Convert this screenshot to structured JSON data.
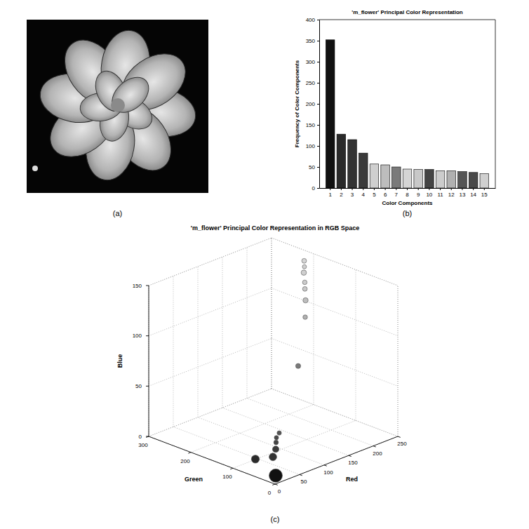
{
  "chart_data": [
    {
      "type": "image",
      "label": "(a)"
    },
    {
      "type": "bar",
      "label": "(b)",
      "title": "'m_flower' Principal Color Representation",
      "xlabel": "Color Components",
      "ylabel": "Frequency of Color Components",
      "categories": [
        1,
        2,
        3,
        4,
        5,
        6,
        7,
        8,
        9,
        10,
        11,
        12,
        13,
        14,
        15
      ],
      "values": [
        352,
        128,
        115,
        83,
        57,
        55,
        50,
        45,
        44,
        44,
        41,
        41,
        39,
        37,
        34
      ],
      "colors": [
        "#111111",
        "#2a2a2a",
        "#333333",
        "#3a3a3a",
        "#cfcfcf",
        "#bdbdbd",
        "#7a7a7a",
        "#d5d5d5",
        "#c8c8c8",
        "#444444",
        "#cccccc",
        "#b0b0b0",
        "#555555",
        "#4a4a4a",
        "#d0d0d0"
      ],
      "ylim": [
        0,
        400
      ],
      "yticks": [
        0,
        50,
        100,
        150,
        200,
        250,
        300,
        350,
        400
      ]
    },
    {
      "type": "scatter3d",
      "label": "(c)",
      "title": "'m_flower' Principal Color Representation in RGB Space",
      "xlabel": "Red",
      "ylabel": "Green",
      "zlabel": "Blue",
      "x": [
        10,
        20,
        30,
        40,
        230,
        225,
        150,
        235,
        228,
        45,
        232,
        220,
        60,
        50,
        233
      ],
      "y": [
        10,
        70,
        40,
        45,
        200,
        190,
        120,
        205,
        195,
        50,
        200,
        185,
        60,
        55,
        202
      ],
      "z": [
        5,
        10,
        15,
        20,
        135,
        110,
        70,
        145,
        120,
        25,
        125,
        95,
        30,
        28,
        140
      ],
      "sizes": [
        352,
        128,
        115,
        83,
        57,
        55,
        50,
        45,
        44,
        44,
        41,
        41,
        39,
        37,
        34
      ],
      "colors": [
        "#111111",
        "#2a2a2a",
        "#333333",
        "#3a3a3a",
        "#cfcfcf",
        "#bdbdbd",
        "#7a7a7a",
        "#d5d5d5",
        "#c8c8c8",
        "#444444",
        "#cccccc",
        "#b0b0b0",
        "#555555",
        "#4a4a4a",
        "#d0d0d0"
      ],
      "xlim": [
        0,
        250
      ],
      "xticks": [
        0,
        50,
        100,
        150,
        200,
        250
      ],
      "ylim": [
        0,
        300
      ],
      "yticks": [
        0,
        100,
        200,
        300
      ],
      "zlim": [
        0,
        150
      ],
      "zticks": [
        0,
        50,
        100,
        150
      ],
      "grid": true
    }
  ]
}
